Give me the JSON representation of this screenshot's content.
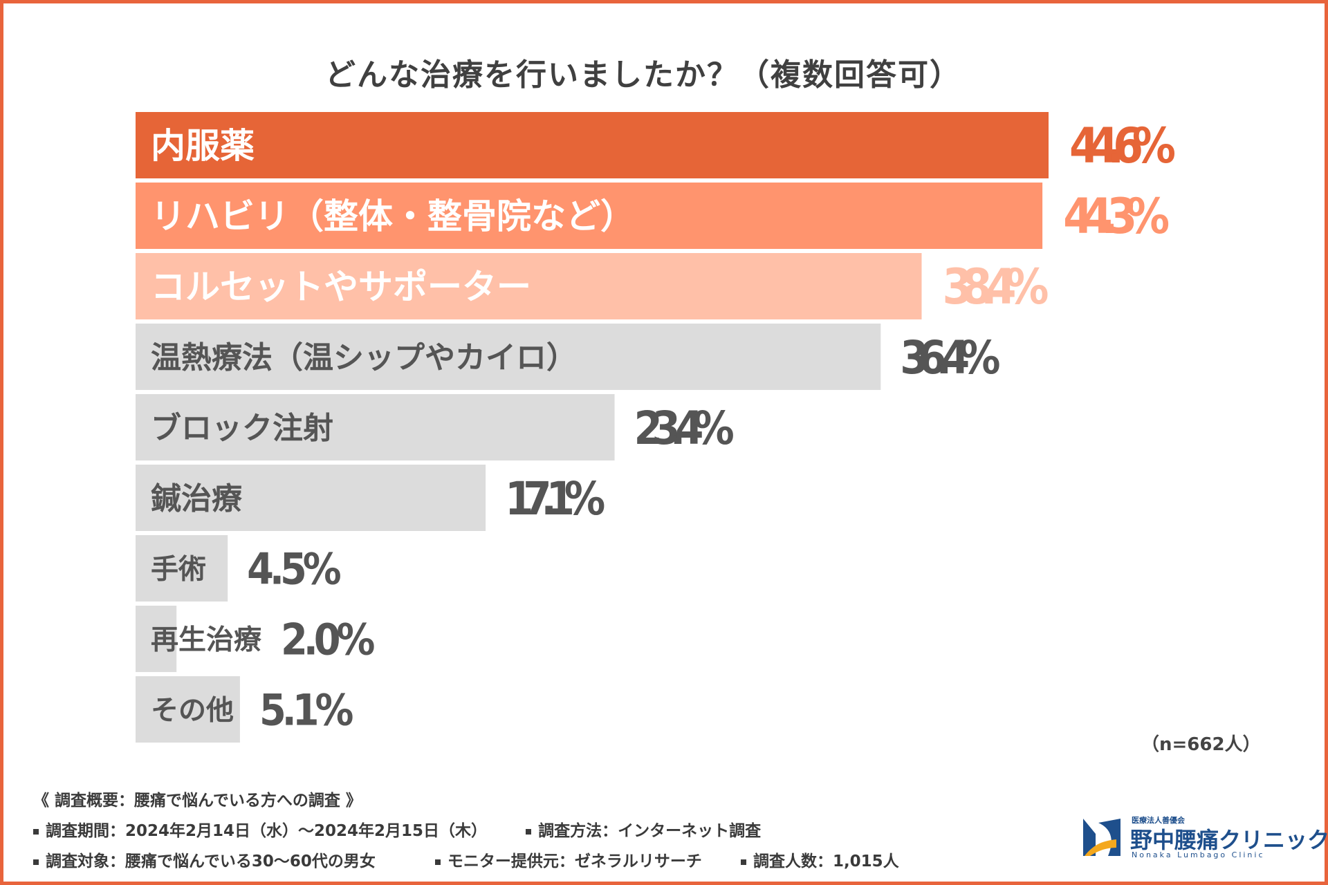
{
  "chart_data": {
    "type": "bar",
    "orientation": "horizontal",
    "title": "どんな治療を行いましたか？（複数回答可）",
    "categories": [
      "内服薬",
      "リハビリ（整体・整骨院など）",
      "コルセットやサポーター",
      "温熱療法（温シップやカイロ）",
      "ブロック注射",
      "鍼治療",
      "手術",
      "再生治療",
      "その他"
    ],
    "values": [
      44.6,
      44.3,
      38.4,
      36.4,
      23.4,
      17.1,
      4.5,
      2.0,
      5.1
    ],
    "value_labels": [
      "44.6%",
      "44.3%",
      "38.4%",
      "36.4%",
      "23.4%",
      "17.1%",
      "4.5%",
      "2.0%",
      "5.1%"
    ],
    "xlim": [
      0,
      44.6
    ],
    "bar_colors": [
      "#e66537",
      "#ff946e",
      "#ffc0a8",
      "#dcdcdc",
      "#dcdcdc",
      "#dcdcdc",
      "#dcdcdc",
      "#dcdcdc",
      "#dcdcdc"
    ],
    "label_colors": [
      "#ffffff",
      "#ffffff",
      "#ffffff",
      "#555555",
      "#555555",
      "#555555",
      "#555555",
      "#555555",
      "#555555"
    ],
    "value_colors": [
      "#e66537",
      "#ff946e",
      "#ffc0a8",
      "#555555",
      "#555555",
      "#555555",
      "#555555",
      "#555555",
      "#555555"
    ],
    "note": "（n=662人）"
  },
  "footer": {
    "heading": "《 調査概要：腰痛で悩んでいる方への調査 》",
    "period": "調査期間：2024年2月14日（水）〜2024年2月15日（木）",
    "method": "調査方法：インターネット調査",
    "target": "調査対象：腰痛で悩んでいる30〜60代の男女",
    "monitor": "モニター提供元：ゼネラルリサーチ",
    "count": "調査人数：1,015人"
  },
  "logo": {
    "small": "医療法人善優会",
    "name": "野中腰痛クリニック",
    "en": "Nonaka Lumbago Clinic"
  }
}
